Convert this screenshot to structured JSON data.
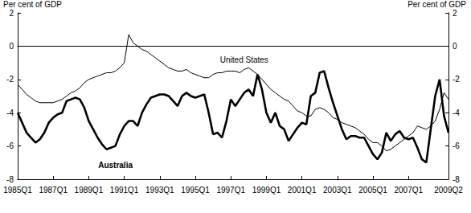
{
  "chart_data": {
    "type": "line",
    "ylabel": "Per cent of GDP",
    "y2label": "Per cent of GDP",
    "categories": [
      "1985Q1",
      null,
      null,
      null,
      null,
      null,
      null,
      null,
      "1987Q1",
      null,
      null,
      null,
      null,
      null,
      null,
      null,
      "1989Q1",
      null,
      null,
      null,
      null,
      null,
      null,
      null,
      "1991Q1",
      null,
      null,
      null,
      null,
      null,
      null,
      null,
      "1993Q1",
      null,
      null,
      null,
      null,
      null,
      null,
      null,
      "1995Q1",
      null,
      null,
      null,
      null,
      null,
      null,
      null,
      "1997Q1",
      null,
      null,
      null,
      null,
      null,
      null,
      null,
      "1999Q1",
      null,
      null,
      null,
      null,
      null,
      null,
      null,
      "2001Q1",
      null,
      null,
      null,
      null,
      null,
      null,
      null,
      "2003Q1",
      null,
      null,
      null,
      null,
      null,
      null,
      null,
      "2005Q1",
      null,
      null,
      null,
      null,
      null,
      null,
      null,
      "2007Q1",
      null,
      null,
      null,
      null,
      null,
      null,
      null,
      null,
      "2009Q2"
    ],
    "series": [
      {
        "name": "United States",
        "color": "#000000",
        "line_style": "thin",
        "values": [
          -2.3,
          -2.6,
          -2.9,
          -3.1,
          -3.3,
          -3.4,
          -3.4,
          -3.4,
          -3.4,
          -3.3,
          -3.2,
          -3.0,
          -2.8,
          -2.7,
          -2.5,
          -2.2,
          -2.0,
          -1.9,
          -1.8,
          -1.7,
          -1.6,
          -1.6,
          -1.5,
          -1.3,
          -1.0,
          0.7,
          0.2,
          0.0,
          -0.2,
          -0.3,
          -0.5,
          -0.7,
          -0.9,
          -1.1,
          -1.3,
          -1.4,
          -1.5,
          -1.5,
          -1.4,
          -1.6,
          -1.7,
          -1.8,
          -1.9,
          -1.9,
          -1.7,
          -1.6,
          -1.6,
          -1.5,
          -1.5,
          -1.5,
          -1.6,
          -1.4,
          -1.3,
          -1.5,
          -1.7,
          -2.0,
          -2.3,
          -2.6,
          -2.8,
          -3.0,
          -3.2,
          -3.3,
          -3.6,
          -3.9,
          -4.0,
          -4.2,
          -4.2,
          -3.8,
          -3.7,
          -3.8,
          -4.0,
          -4.3,
          -4.4,
          -4.6,
          -4.7,
          -4.8,
          -4.9,
          -5.1,
          -5.3,
          -5.6,
          -5.8,
          -5.8,
          -6.0,
          -6.3,
          -6.2,
          -6.0,
          -5.8,
          -5.6,
          -5.4,
          -5.2,
          -4.8,
          -4.9,
          -5.0,
          -4.8,
          -4.5,
          -3.8,
          -2.8,
          -3.2
        ]
      },
      {
        "name": "Australia",
        "color": "#000000",
        "line_style": "thick",
        "values": [
          -4.0,
          -4.6,
          -5.2,
          -5.5,
          -5.8,
          -5.6,
          -5.2,
          -4.6,
          -4.3,
          -4.1,
          -4.0,
          -3.3,
          -3.2,
          -3.1,
          -3.2,
          -3.7,
          -4.5,
          -5.0,
          -5.5,
          -5.9,
          -6.2,
          -6.1,
          -6.0,
          -5.3,
          -4.8,
          -4.5,
          -4.5,
          -4.8,
          -4.0,
          -3.5,
          -3.1,
          -3.0,
          -2.9,
          -2.9,
          -3.0,
          -3.3,
          -3.6,
          -3.0,
          -2.8,
          -3.0,
          -3.1,
          -3.0,
          -2.9,
          -4.0,
          -5.3,
          -5.2,
          -5.5,
          -4.5,
          -3.2,
          -3.6,
          -3.2,
          -2.8,
          -2.6,
          -3.0,
          -1.7,
          -2.6,
          -4.0,
          -4.6,
          -4.0,
          -4.8,
          -5.0,
          -5.7,
          -5.3,
          -4.9,
          -4.6,
          -4.7,
          -3.0,
          -2.8,
          -1.6,
          -1.5,
          -2.5,
          -3.4,
          -4.2,
          -5.0,
          -5.6,
          -5.4,
          -5.4,
          -5.5,
          -5.5,
          -6.0,
          -6.5,
          -6.8,
          -6.4,
          -5.2,
          -5.7,
          -5.3,
          -5.1,
          -5.5,
          -5.6,
          -5.5,
          -6.1,
          -6.8,
          -7.0,
          -5.0,
          -3.0,
          -2.0,
          -4.2,
          -5.2
        ]
      }
    ],
    "ylim": [
      -8,
      2
    ],
    "yticks": [
      -8,
      -6,
      -4,
      -2,
      0,
      2
    ],
    "y2lim": [
      -8,
      2
    ],
    "y2ticks": [
      -8,
      -6,
      -4,
      -2,
      0,
      2
    ],
    "grid": false
  }
}
